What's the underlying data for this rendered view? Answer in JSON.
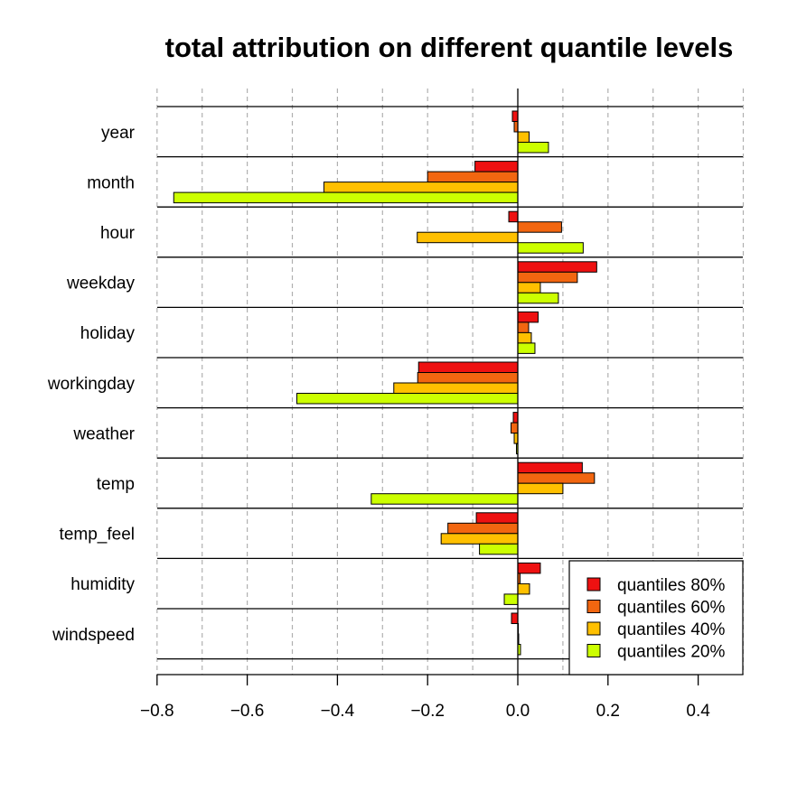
{
  "chart_data": {
    "type": "bar",
    "orientation": "horizontal",
    "title": "total attribution on different quantile levels",
    "xlabel": "",
    "ylabel": "",
    "xlim": [
      -0.8,
      0.5
    ],
    "x_ticks": [
      -0.8,
      -0.6,
      -0.4,
      -0.2,
      0.0,
      0.2,
      0.4
    ],
    "x_tick_labels": [
      "−0.8",
      "−0.6",
      "−0.4",
      "−0.2",
      "0.0",
      "0.2",
      "0.4"
    ],
    "vertical_gridlines": [
      -0.8,
      -0.7,
      -0.6,
      -0.5,
      -0.4,
      -0.3,
      -0.2,
      -0.1,
      0.1,
      0.2,
      0.3,
      0.4,
      0.5
    ],
    "grid": "dashed vertical",
    "legend_position": "bottom-right",
    "categories": [
      "year",
      "month",
      "hour",
      "weekday",
      "holiday",
      "workingday",
      "weather",
      "temp",
      "temp_feel",
      "humidity",
      "windspeed"
    ],
    "series": [
      {
        "name": "quantiles 80%",
        "color": "#ee1111",
        "values": [
          -0.012,
          -0.095,
          -0.02,
          0.175,
          0.045,
          -0.22,
          -0.01,
          0.143,
          -0.092,
          0.05,
          -0.014
        ]
      },
      {
        "name": "quantiles 60%",
        "color": "#f26610",
        "values": [
          -0.008,
          -0.2,
          0.097,
          0.132,
          0.024,
          -0.222,
          -0.015,
          0.17,
          -0.155,
          0.005,
          0.001
        ]
      },
      {
        "name": "quantiles 40%",
        "color": "#ffc000",
        "values": [
          0.025,
          -0.43,
          -0.223,
          0.05,
          0.03,
          -0.275,
          -0.008,
          0.1,
          -0.17,
          0.026,
          0.002
        ]
      },
      {
        "name": "quantiles 20%",
        "color": "#ccff00",
        "values": [
          0.068,
          -0.763,
          0.145,
          0.09,
          0.038,
          -0.49,
          -0.003,
          -0.325,
          -0.085,
          -0.03,
          0.006
        ]
      }
    ]
  }
}
